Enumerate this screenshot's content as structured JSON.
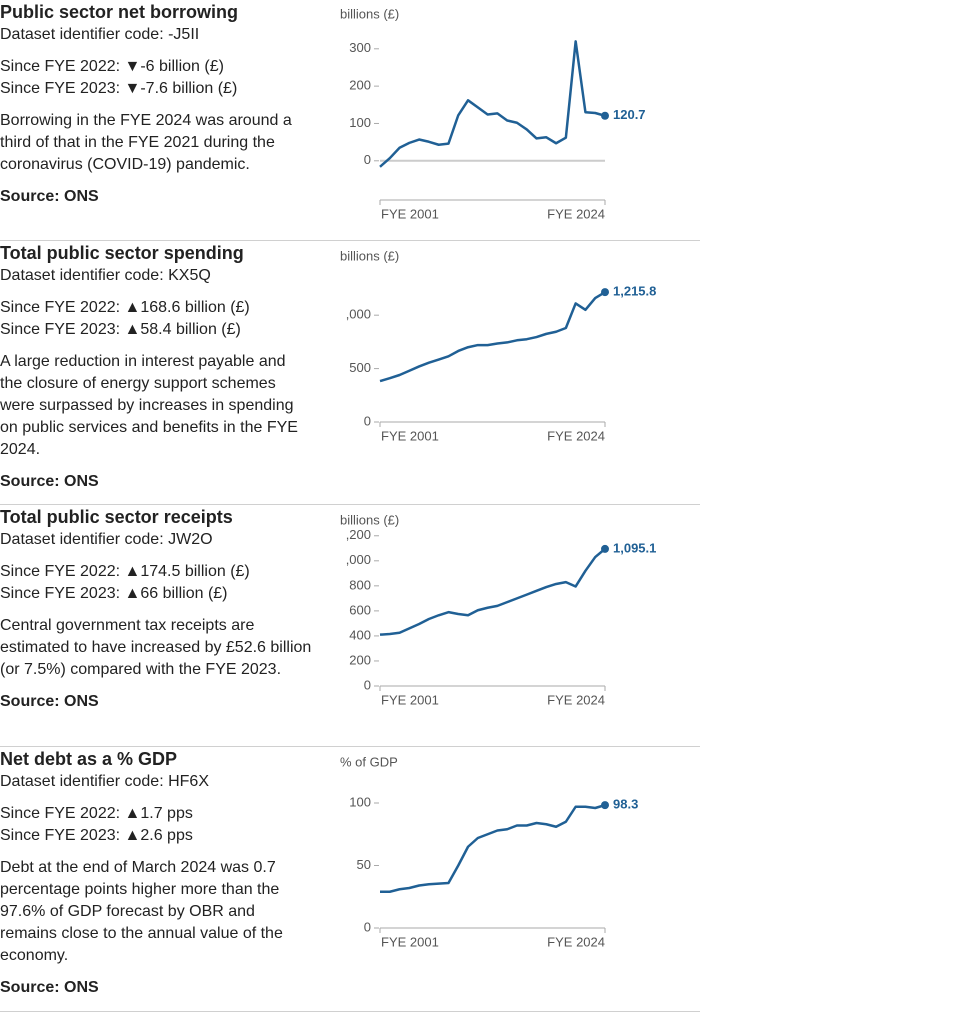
{
  "chart_data": [
    {
      "type": "line",
      "title": "Public sector net borrowing",
      "dataset_code": "Dataset identifier code: -J5II",
      "since_2022": "Since FYE 2022: ▼-6 billion (£)",
      "since_2023": "Since FYE 2023: ▼-7.6 billion (£)",
      "description": "Borrowing in the FYE 2024 was around a third of that in the FYE 2021 during the coronavirus (COVID-19) pandemic.",
      "source": "Source: ONS",
      "y_label": "billions (£)",
      "color": "#206095",
      "categories": [
        "FYE 2001",
        null,
        null,
        null,
        null,
        null,
        null,
        null,
        null,
        null,
        null,
        null,
        null,
        null,
        null,
        null,
        null,
        null,
        null,
        null,
        null,
        null,
        null,
        "FYE 2024"
      ],
      "values": [
        -16,
        7,
        35,
        48,
        57,
        51,
        43,
        46,
        122,
        162,
        143,
        124,
        127,
        108,
        102,
        84,
        60,
        63,
        47,
        62,
        320,
        130,
        128,
        120.7
      ],
      "value_labels": [
        null,
        null,
        null,
        null,
        null,
        null,
        null,
        null,
        null,
        null,
        null,
        null,
        null,
        null,
        null,
        null,
        null,
        null,
        null,
        null,
        null,
        null,
        null,
        "120.7"
      ],
      "ylim": [
        -105,
        330
      ],
      "yticks": [
        0,
        100,
        200,
        300
      ]
    },
    {
      "type": "line",
      "title": "Total public sector spending",
      "dataset_code": "Dataset identifier code: KX5Q",
      "since_2022": "Since FYE 2022: ▲168.6 billion (£)",
      "since_2023": "Since FYE 2023: ▲58.4 billion (£)",
      "description": "A large reduction in interest payable and the closure of energy support schemes were surpassed by increases in spending on public services and benefits in the FYE 2024.",
      "source": "Source: ONS",
      "y_label": "billions (£)",
      "color": "#206095",
      "categories": [
        "FYE 2001",
        null,
        null,
        null,
        null,
        null,
        null,
        null,
        null,
        null,
        null,
        null,
        null,
        null,
        null,
        null,
        null,
        null,
        null,
        null,
        null,
        null,
        null,
        "FYE 2024"
      ],
      "values": [
        383,
        410,
        440,
        480,
        520,
        555,
        585,
        615,
        665,
        700,
        720,
        720,
        735,
        745,
        765,
        775,
        795,
        825,
        845,
        880,
        1110,
        1050,
        1160,
        1215.8
      ],
      "value_labels": [
        null,
        null,
        null,
        null,
        null,
        null,
        null,
        null,
        null,
        null,
        null,
        null,
        null,
        null,
        null,
        null,
        null,
        null,
        null,
        null,
        null,
        null,
        null,
        "1,215.8"
      ],
      "ylim": [
        0,
        1320
      ],
      "yticks": [
        0,
        500,
        {
          "value": 1000,
          "label": ",000"
        }
      ]
    },
    {
      "type": "line",
      "title": "Total public sector receipts",
      "dataset_code": "Dataset identifier code: JW2O",
      "since_2022": "Since FYE 2022: ▲174.5 billion (£)",
      "since_2023": "Since FYE 2023: ▲66 billion (£)",
      "description": "Central government tax receipts are estimated to have increased by £52.6 billion (or 7.5%) compared with the FYE 2023.",
      "source": "Source: ONS",
      "y_label": "billions (£)",
      "color": "#206095",
      "categories": [
        "FYE 2001",
        null,
        null,
        null,
        null,
        null,
        null,
        null,
        null,
        null,
        null,
        null,
        null,
        null,
        null,
        null,
        null,
        null,
        null,
        null,
        null,
        null,
        null,
        "FYE 2024"
      ],
      "values": [
        410,
        415,
        425,
        460,
        495,
        535,
        565,
        590,
        575,
        565,
        605,
        625,
        640,
        670,
        700,
        730,
        760,
        790,
        815,
        830,
        795,
        920,
        1030,
        1095.1
      ],
      "value_labels": [
        null,
        null,
        null,
        null,
        null,
        null,
        null,
        null,
        null,
        null,
        null,
        null,
        null,
        null,
        null,
        null,
        null,
        null,
        null,
        null,
        null,
        null,
        null,
        "1,095.1"
      ],
      "ylim": [
        0,
        1270
      ],
      "yticks": [
        0,
        200,
        400,
        600,
        800,
        {
          "value": 1000,
          "label": ",000"
        },
        {
          "value": 1200,
          "label": ",200"
        }
      ]
    },
    {
      "type": "line",
      "title": "Net debt as a % GDP",
      "dataset_code": "Dataset identifier code: HF6X",
      "since_2022": "Since FYE 2022: ▲1.7 pps",
      "since_2023": "Since FYE 2023: ▲2.6 pps",
      "description": "Debt at the end of March 2024 was 0.7 percentage points higher more than the 97.6% of GDP forecast by OBR and remains close to the annual value of the economy.",
      "source": "Source: ONS",
      "y_label": "% of GDP",
      "color": "#206095",
      "categories": [
        "FYE 2001",
        null,
        null,
        null,
        null,
        null,
        null,
        null,
        null,
        null,
        null,
        null,
        null,
        null,
        null,
        null,
        null,
        null,
        null,
        null,
        null,
        null,
        null,
        "FYE 2024"
      ],
      "values": [
        29,
        29,
        31,
        32,
        34,
        35,
        35.5,
        36,
        50,
        65,
        72,
        75,
        78,
        79,
        82,
        82,
        84,
        83,
        81,
        85,
        97,
        97,
        96,
        98.3
      ],
      "ylim": [
        0,
        110
      ],
      "yticks": [
        0,
        50,
        100
      ]
    }
  ]
}
